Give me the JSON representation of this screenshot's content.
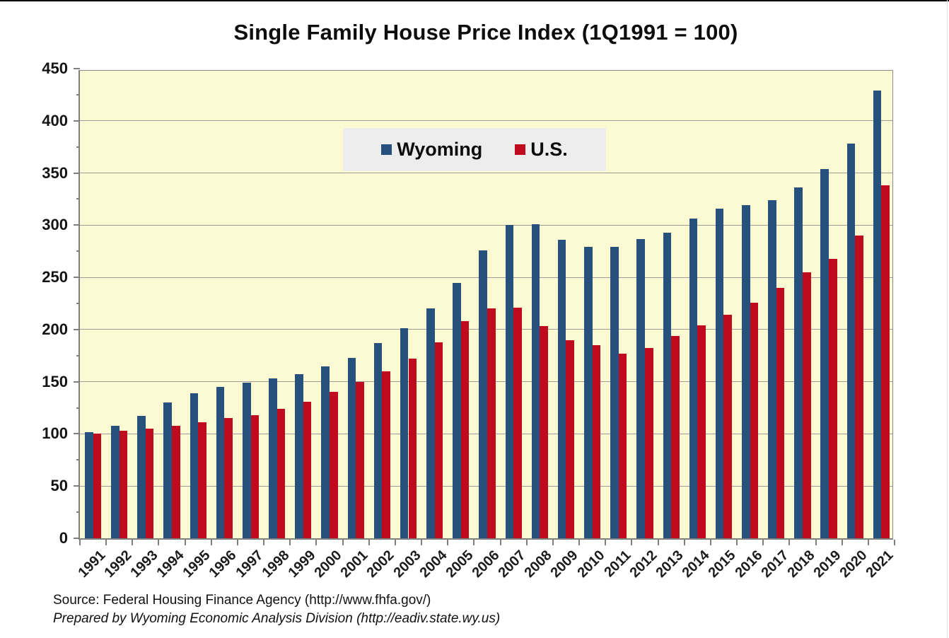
{
  "page": {
    "title": "Single Family House Price Index (1Q1991 = 100)",
    "source_line1": "Source: Federal Housing Finance Agency (http://www.fhfa.gov/)",
    "source_line2": "Prepared by Wyoming Economic Analysis Division (http://eadiv.state.wy.us)"
  },
  "chart_data": {
    "type": "bar",
    "title": "Single Family House Price Index (1Q1991 = 100)",
    "categories": [
      "1991",
      "1992",
      "1993",
      "1994",
      "1995",
      "1996",
      "1997",
      "1998",
      "1999",
      "2000",
      "2001",
      "2002",
      "2003",
      "2004",
      "2005",
      "2006",
      "2007",
      "2008",
      "2009",
      "2010",
      "2011",
      "2012",
      "2013",
      "2014",
      "2015",
      "2016",
      "2017",
      "2018",
      "2019",
      "2020",
      "2021"
    ],
    "series": [
      {
        "name": "Wyoming",
        "color": "#27517d",
        "values": [
          102,
          108,
          117,
          130,
          139,
          145,
          149,
          153,
          157,
          165,
          173,
          187,
          201,
          220,
          245,
          276,
          300,
          301,
          286,
          279,
          279,
          287,
          293,
          306,
          316,
          319,
          324,
          336,
          354,
          378,
          429
        ]
      },
      {
        "name": "U.S.",
        "color": "#c00b1e",
        "values": [
          100,
          103,
          105,
          108,
          111,
          115,
          118,
          124,
          131,
          140,
          150,
          160,
          172,
          188,
          208,
          220,
          221,
          203,
          190,
          185,
          177,
          182,
          194,
          204,
          214,
          226,
          240,
          255,
          268,
          290,
          338
        ]
      }
    ],
    "ylim": [
      0,
      450
    ],
    "ytick_step": 50,
    "ytick_minor_step": 25,
    "grid": true,
    "legend_position": "inside-top-center",
    "plot_bg": "#fbfad2",
    "gridline_color": "#9b9b9b",
    "xlabel": "",
    "ylabel": ""
  }
}
